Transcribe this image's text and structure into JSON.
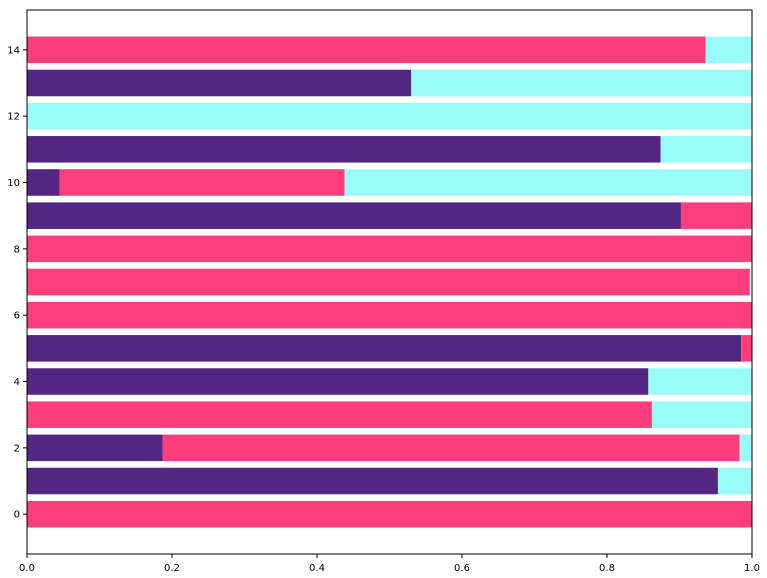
{
  "chart_data": {
    "type": "bar",
    "orientation": "horizontal",
    "stacked": true,
    "categories": [
      0,
      1,
      2,
      3,
      4,
      5,
      6,
      7,
      8,
      9,
      10,
      11,
      12,
      13,
      14
    ],
    "series": [
      {
        "color": "#532683",
        "values": [
          0.0,
          0.953,
          0.187,
          0.0,
          0.857,
          0.985,
          0.0,
          0.0,
          0.0,
          0.902,
          0.045,
          0.874,
          0.0,
          0.53,
          0.0
        ]
      },
      {
        "color": "#fe3d7d",
        "values": [
          1.0,
          0.0,
          0.796,
          0.862,
          0.0,
          0.015,
          1.0,
          0.997,
          1.0,
          0.098,
          0.393,
          0.0,
          0.0,
          0.0,
          0.936
        ]
      },
      {
        "color": "#99fcf9",
        "values": [
          0.0,
          0.047,
          0.017,
          0.138,
          0.143,
          0.0,
          0.0,
          0.0,
          0.0,
          0.0,
          0.562,
          0.126,
          1.0,
          0.47,
          0.064
        ]
      }
    ],
    "xlim": [
      0,
      1.0
    ],
    "ylim": [
      -1.2,
      15.2
    ],
    "xticks": [
      "0.0",
      "0.2",
      "0.4",
      "0.6",
      "0.8",
      "1.0"
    ],
    "yticks": [
      "0",
      "2",
      "4",
      "6",
      "8",
      "10",
      "12",
      "14"
    ],
    "title": "",
    "xlabel": "",
    "ylabel": "",
    "grid": false,
    "legend": "none"
  }
}
